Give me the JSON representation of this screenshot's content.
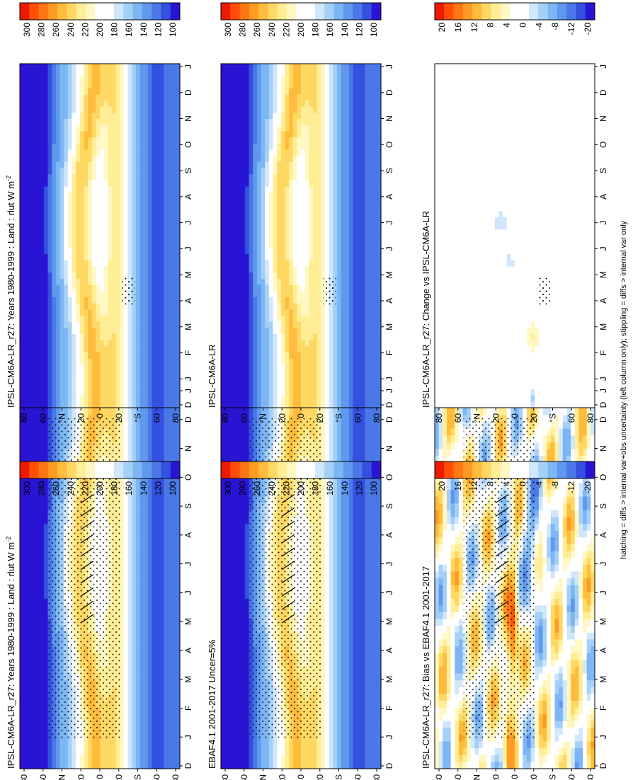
{
  "figure": {
    "footnote": "hatching = diffs > internal var+obs uncertainty (left column only); stippling = diffs > internal var only"
  },
  "colors": {
    "abs_scale": [
      "#2a14d4",
      "#3450e0",
      "#4a78e6",
      "#5f98ee",
      "#7cb6f4",
      "#a4d0f8",
      "#cfe6fb",
      "#ffffff",
      "#ffffff",
      "#fff8c4",
      "#ffee96",
      "#ffd864",
      "#ffbc3c",
      "#ff9a22",
      "#ff7614",
      "#ff4e0a",
      "#ee1a00"
    ],
    "diff_scale": [
      "#2a14d4",
      "#3450e0",
      "#4a78e6",
      "#5f98ee",
      "#7cb6f4",
      "#a4d0f8",
      "#cfe6fb",
      "#ffffff",
      "#ffffff",
      "#fff8c4",
      "#ffee96",
      "#ffd864",
      "#ffbc3c",
      "#ff9a22",
      "#ff7614",
      "#ff4e0a",
      "#ee1a00"
    ]
  },
  "colorbars": {
    "absolute": [
      "300",
      "280",
      "260",
      "240",
      "220",
      "200",
      "180",
      "160",
      "140",
      "120",
      "100"
    ],
    "difference": [
      "20",
      "16",
      "12",
      "8",
      "4",
      "0",
      "-4",
      "-8",
      "-12",
      "-20"
    ]
  },
  "axes": {
    "months": [
      "D",
      "J",
      "F",
      "M",
      "A",
      "M",
      "J",
      "J",
      "A",
      "S",
      "O",
      "N",
      "D",
      "J"
    ],
    "lat_ticks": [
      "80",
      "60",
      "°N",
      "20",
      "0",
      "20",
      "°S",
      "60",
      "80"
    ]
  },
  "chart_data": [
    {
      "type": "heatmap",
      "id": "model_r27",
      "title": "IPSL-CM6A-LR_r27: Years 1980-1999 : Land : rlut W m",
      "title_sup": "-2",
      "kind": "absolute",
      "zlim": [
        100,
        300
      ],
      "stipple": true,
      "hatch": true
    },
    {
      "type": "heatmap",
      "id": "obs_ebaf",
      "title": "EBAF4.1 2001-2017 Uncer=5%",
      "title_sup": "",
      "kind": "absolute",
      "zlim": [
        100,
        300
      ],
      "stipple": true,
      "hatch": true
    },
    {
      "type": "heatmap",
      "id": "bias_r27",
      "title": "IPSL-CM6A-LR_r27: Bias vs EBAF4.1 2001-2017",
      "title_sup": "",
      "kind": "difference",
      "zlim": [
        -20,
        20
      ],
      "stipple": true,
      "hatch": true
    },
    {
      "type": "heatmap",
      "id": "model_r27_repeat",
      "title": "IPSL-CM6A-LR_r27: Years 1980-1999 : Land : rlut W m",
      "title_sup": "-2",
      "kind": "absolute",
      "zlim": [
        100,
        300
      ],
      "stipple": true,
      "hatch": false
    },
    {
      "type": "heatmap",
      "id": "ensemble",
      "title": "IPSL-CM6A-LR",
      "title_sup": "",
      "kind": "absolute",
      "zlim": [
        100,
        300
      ],
      "stipple": true,
      "hatch": false
    },
    {
      "type": "heatmap",
      "id": "change_r27",
      "title": "IPSL-CM6A-LR_r27: Change vs IPSL-CM6A-LR",
      "title_sup": "",
      "kind": "difference",
      "zlim": [
        -20,
        20
      ],
      "stipple": true,
      "hatch": false
    }
  ]
}
